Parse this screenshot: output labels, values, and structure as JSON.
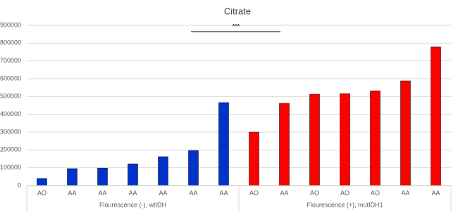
{
  "chart_data": {
    "type": "bar",
    "title": "Citrate",
    "ylim": [
      0,
      900000
    ],
    "yticks": [
      0,
      100000,
      200000,
      300000,
      400000,
      500000,
      600000,
      700000,
      800000,
      900000
    ],
    "grid": true,
    "groups": [
      {
        "label": "Flourescence (-), wtIDH",
        "color": "#0033cc",
        "categories": [
          "AO",
          "AA",
          "AA",
          "AA",
          "AA",
          "AA",
          "AA"
        ],
        "values": [
          40000,
          95000,
          98000,
          122000,
          162000,
          197000,
          466000
        ]
      },
      {
        "label": "Flourescence (+), mutIDH1",
        "color": "#ff0000",
        "categories": [
          "AO",
          "AA",
          "AO",
          "AO",
          "AO",
          "AA",
          "AA"
        ],
        "values": [
          300000,
          462000,
          513000,
          516000,
          532000,
          588000,
          778000
        ]
      }
    ],
    "annotation": "***"
  }
}
